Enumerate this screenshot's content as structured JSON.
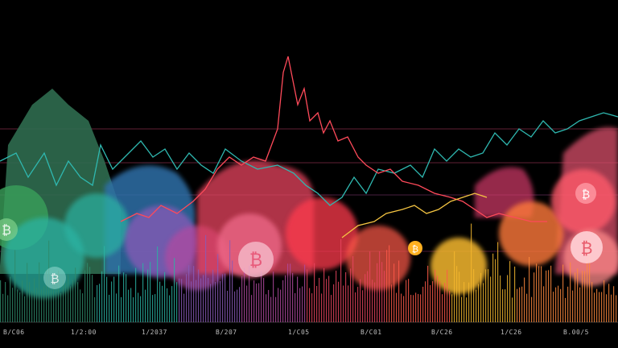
{
  "artwork": {
    "colors": {
      "background": "#000000",
      "green": "#2f6b4f",
      "teal": "#2bb3a3",
      "blue": "#2e6fa8",
      "purple": "#b24aa0",
      "pink": "#e8455f",
      "red": "#ff3b4d",
      "orange": "#ff8a3d",
      "yellow": "#f5b82e",
      "line_teal": "#2fb8b0",
      "line_red": "#ff4a5a",
      "line_yellow": "#f5c542"
    },
    "icons": [
      "bitcoin-coin-icon",
      "bitcoin-coin-icon",
      "bitcoin-coin-icon",
      "bitcoin-coin-icon",
      "bitcoin-coin-icon",
      "bitcoin-coin-icon"
    ]
  },
  "axis": {
    "tick_labels": [
      "B/C06",
      "1/2:00",
      "1/2037",
      "B/207",
      "1/C05",
      "B/C01",
      "B/C26",
      "1/C26",
      "B.00/5"
    ]
  }
}
